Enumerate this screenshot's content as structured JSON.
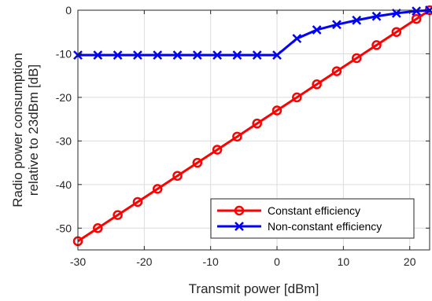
{
  "chart_data": {
    "type": "line",
    "title": "",
    "xlabel": "Transmit power [dBm]",
    "ylabel_lines": [
      "Radio power consumption",
      "relative to 23dBm [dB]"
    ],
    "xlim": [
      -30,
      23
    ],
    "ylim": [
      -55,
      0
    ],
    "xticks": [
      -30,
      -20,
      -10,
      0,
      10,
      20
    ],
    "yticks": [
      0,
      -10,
      -20,
      -30,
      -40,
      -50
    ],
    "xtick_labels": [
      "-30",
      "-20",
      "-10",
      "0",
      "10",
      "20"
    ],
    "ytick_labels": [
      "0",
      "-10",
      "-20",
      "-30",
      "-40",
      "-50"
    ],
    "grid": true,
    "legend_position": "bottom-right",
    "series": [
      {
        "name": "Constant efficiency",
        "color": "#ff0000",
        "marker": "circle",
        "x": [
          -30,
          -27,
          -24,
          -21,
          -18,
          -15,
          -12,
          -9,
          -6,
          -3,
          0,
          3,
          6,
          9,
          12,
          15,
          18,
          21,
          23
        ],
        "y": [
          -53,
          -50,
          -47,
          -44,
          -41,
          -38,
          -35,
          -32,
          -29,
          -26,
          -23,
          -20,
          -17,
          -14,
          -11,
          -8,
          -5,
          -2,
          0
        ]
      },
      {
        "name": "Non-constant efficiency",
        "color": "#0000ff",
        "marker": "x",
        "x": [
          -30,
          -27,
          -24,
          -21,
          -18,
          -15,
          -12,
          -9,
          -6,
          -3,
          0,
          3,
          6,
          9,
          12,
          15,
          18,
          21,
          23
        ],
        "y": [
          -10.3,
          -10.3,
          -10.3,
          -10.3,
          -10.3,
          -10.3,
          -10.3,
          -10.3,
          -10.3,
          -10.3,
          -10.3,
          -6.5,
          -4.5,
          -3.3,
          -2.3,
          -1.4,
          -0.7,
          -0.2,
          0
        ]
      }
    ]
  }
}
